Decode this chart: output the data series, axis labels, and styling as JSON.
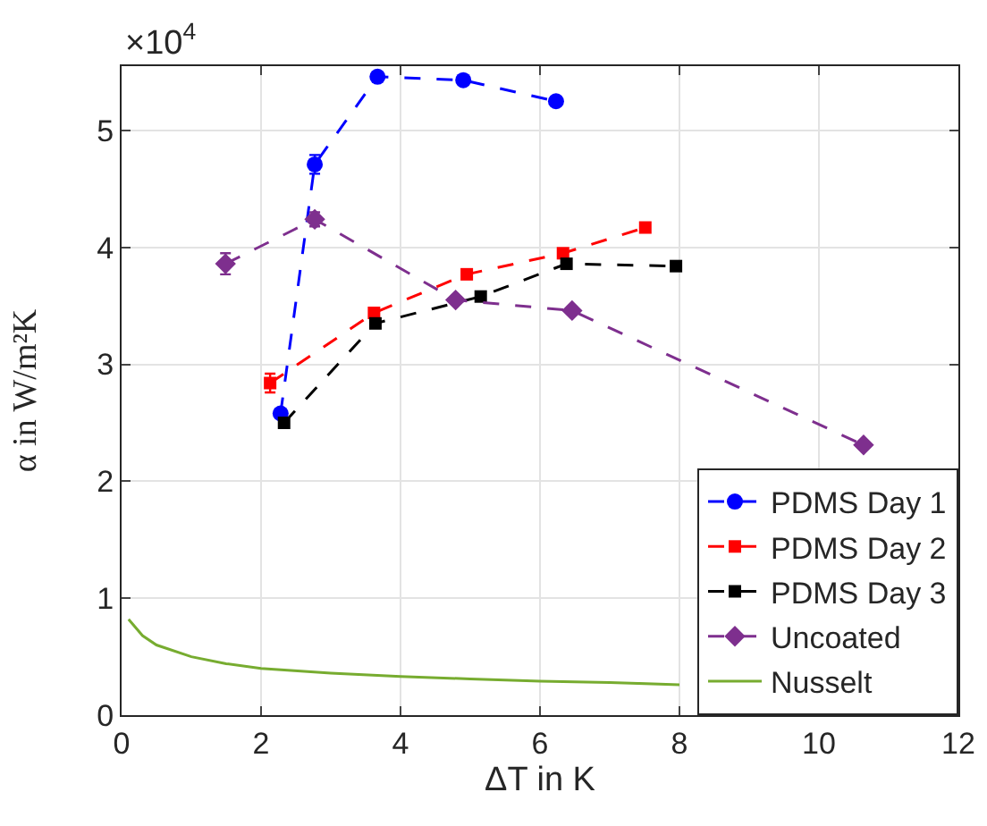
{
  "chart_data": {
    "type": "line",
    "xlabel": "ΔT in K",
    "ylabel": "α in W/m²K",
    "annotations": [
      "×10$^{4}$"
    ],
    "xlim": [
      0,
      12
    ],
    "xticks": [
      0,
      2,
      4,
      6,
      8,
      10,
      12
    ],
    "ylim": [
      0,
      5.55
    ],
    "yticks": [
      0,
      1,
      2,
      3,
      4,
      5
    ],
    "grid": true,
    "legend": "bottom right",
    "series": [
      {
        "name": "PDMS Day 1",
        "color": "#0000ff",
        "line_style": "dashed",
        "marker": "circle",
        "x": [
          2.28,
          2.77,
          3.67,
          4.9,
          6.23
        ],
        "values": [
          2.58,
          4.71,
          5.46,
          5.43,
          5.25
        ],
        "errors": [
          null,
          0.08,
          null,
          null,
          null
        ]
      },
      {
        "name": "PDMS Day 2",
        "color": "#ff0000",
        "line_style": "dashed",
        "marker": "square",
        "x": [
          2.13,
          3.62,
          4.95,
          6.33,
          7.51
        ],
        "values": [
          2.84,
          3.44,
          3.77,
          3.95,
          4.17
        ],
        "errors": [
          0.08,
          null,
          null,
          null,
          null
        ]
      },
      {
        "name": "PDMS Day 3",
        "color": "#000000",
        "line_style": "dashed",
        "marker": "square",
        "x": [
          2.33,
          3.64,
          5.15,
          6.38,
          7.95
        ],
        "values": [
          2.5,
          3.35,
          3.58,
          3.86,
          3.84
        ]
      },
      {
        "name": "Uncoated",
        "color": "#7e2f8e",
        "line_style": "dashed",
        "marker": "diamond",
        "x": [
          1.49,
          2.77,
          4.79,
          6.46,
          10.64
        ],
        "values": [
          3.86,
          4.24,
          3.55,
          3.46,
          2.31
        ],
        "errors": [
          0.09,
          0.06,
          null,
          null,
          null
        ]
      },
      {
        "name": "Nusselt",
        "color": "#77ac30",
        "line_style": "solid",
        "marker": "none",
        "x": [
          0.1,
          0.3,
          0.5,
          1,
          1.5,
          2,
          3,
          4,
          5,
          6,
          7,
          8
        ],
        "values": [
          0.82,
          0.68,
          0.6,
          0.5,
          0.44,
          0.4,
          0.36,
          0.33,
          0.31,
          0.29,
          0.28,
          0.26
        ]
      }
    ]
  }
}
